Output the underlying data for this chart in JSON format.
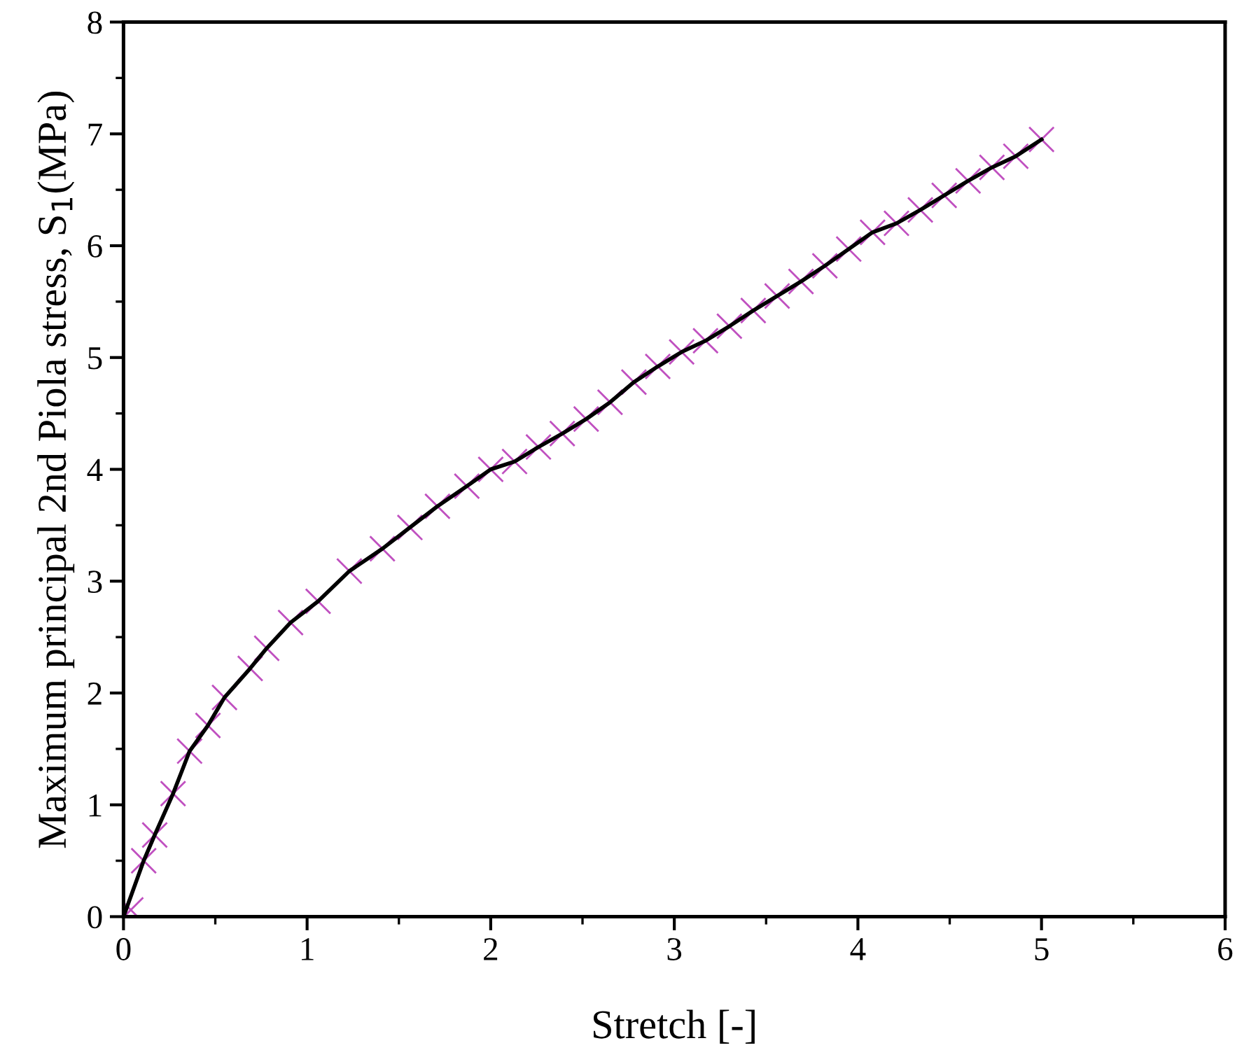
{
  "chart_data": {
    "type": "line",
    "xlabel": "Stretch [-]",
    "ylabel": "Maximum principal 2nd Piola stress, S$_{1}$(MPa)",
    "xlim": [
      0,
      6
    ],
    "ylim": [
      0,
      8
    ],
    "xticks": [
      0,
      1,
      2,
      3,
      4,
      5,
      6
    ],
    "yticks": [
      0,
      1,
      2,
      3,
      4,
      5,
      6,
      7,
      8
    ],
    "grid": false,
    "series": [
      {
        "type": "scatter",
        "marker": "cross",
        "color": "#c050c0",
        "x": [
          0.04,
          0.11,
          0.17,
          0.27,
          0.36,
          0.46,
          0.55,
          0.69,
          0.78,
          0.91,
          1.06,
          1.23,
          1.41,
          1.56,
          1.71,
          1.87,
          2.0,
          2.13,
          2.26,
          2.39,
          2.52,
          2.65,
          2.78,
          2.91,
          3.04,
          3.17,
          3.3,
          3.43,
          3.56,
          3.69,
          3.82,
          3.95,
          4.08,
          4.21,
          4.34,
          4.47,
          4.6,
          4.73,
          4.86,
          5.0
        ],
        "values": [
          0.06,
          0.5,
          0.73,
          1.1,
          1.48,
          1.71,
          1.96,
          2.22,
          2.4,
          2.63,
          2.82,
          3.09,
          3.29,
          3.48,
          3.67,
          3.85,
          4.0,
          4.07,
          4.2,
          4.32,
          4.45,
          4.6,
          4.78,
          4.92,
          5.05,
          5.15,
          5.28,
          5.42,
          5.55,
          5.68,
          5.82,
          5.97,
          6.12,
          6.2,
          6.32,
          6.45,
          6.58,
          6.7,
          6.8,
          6.95
        ]
      },
      {
        "line_style": "solid",
        "color": "#000000",
        "x": [
          0,
          0.11,
          0.17,
          0.27,
          0.36,
          0.46,
          0.55,
          0.69,
          0.78,
          0.91,
          1.06,
          1.23,
          1.41,
          1.56,
          1.71,
          1.87,
          2.0,
          2.13,
          2.26,
          2.39,
          2.52,
          2.65,
          2.78,
          2.91,
          3.04,
          3.17,
          3.3,
          3.43,
          3.56,
          3.69,
          3.82,
          3.95,
          4.08,
          4.21,
          4.34,
          4.47,
          4.6,
          4.73,
          4.86,
          5.0
        ],
        "values": [
          0,
          0.5,
          0.73,
          1.1,
          1.48,
          1.71,
          1.96,
          2.22,
          2.4,
          2.63,
          2.82,
          3.09,
          3.29,
          3.48,
          3.67,
          3.85,
          4.0,
          4.07,
          4.2,
          4.32,
          4.45,
          4.6,
          4.78,
          4.92,
          5.05,
          5.15,
          5.28,
          5.42,
          5.55,
          5.68,
          5.82,
          5.97,
          6.12,
          6.2,
          6.32,
          6.45,
          6.58,
          6.7,
          6.8,
          6.95
        ]
      }
    ]
  }
}
